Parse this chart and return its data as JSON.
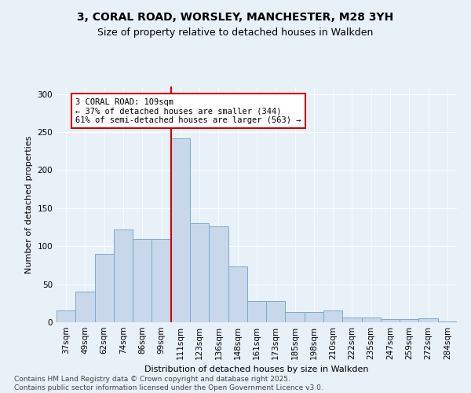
{
  "title_line1": "3, CORAL ROAD, WORSLEY, MANCHESTER, M28 3YH",
  "title_line2": "Size of property relative to detached houses in Walkden",
  "xlabel": "Distribution of detached houses by size in Walkden",
  "ylabel": "Number of detached properties",
  "bar_labels": [
    "37sqm",
    "49sqm",
    "62sqm",
    "74sqm",
    "86sqm",
    "99sqm",
    "111sqm",
    "123sqm",
    "136sqm",
    "148sqm",
    "161sqm",
    "173sqm",
    "185sqm",
    "198sqm",
    "210sqm",
    "222sqm",
    "235sqm",
    "247sqm",
    "259sqm",
    "272sqm",
    "284sqm"
  ],
  "bar_values": [
    16,
    40,
    90,
    122,
    110,
    110,
    242,
    130,
    126,
    73,
    28,
    28,
    13,
    13,
    16,
    6,
    6,
    4,
    4,
    5,
    1
  ],
  "bar_color": "#c8d8ea",
  "bar_edge_color": "#7aaac8",
  "vline_index": 6,
  "vline_color": "#cc0000",
  "annotation_text": "3 CORAL ROAD: 109sqm\n← 37% of detached houses are smaller (344)\n61% of semi-detached houses are larger (563) →",
  "annotation_box_color": "#ffffff",
  "annotation_box_edge_color": "#cc0000",
  "ylim": [
    0,
    310
  ],
  "yticks": [
    0,
    50,
    100,
    150,
    200,
    250,
    300
  ],
  "bg_color": "#e8f0f8",
  "plot_bg_color": "#e8f0f8",
  "footer_line1": "Contains HM Land Registry data © Crown copyright and database right 2025.",
  "footer_line2": "Contains public sector information licensed under the Open Government Licence v3.0.",
  "title_fontsize": 10,
  "subtitle_fontsize": 9,
  "axis_label_fontsize": 8,
  "tick_fontsize": 7.5,
  "annotation_fontsize": 7.5,
  "footer_fontsize": 6.5,
  "fig_width": 6.0,
  "fig_height": 5.0,
  "fig_dpi": 100
}
